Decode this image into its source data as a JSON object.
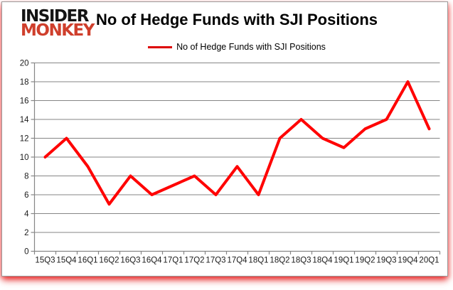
{
  "logo": {
    "line1": "INSIDER",
    "line2": "MONKEY"
  },
  "header": {
    "title": "No of Hedge Funds with SJI Positions"
  },
  "legend": {
    "label": "No of Hedge Funds with SJI Positions"
  },
  "colors": {
    "line": "#ff0000",
    "legend_line": "#dd0000",
    "logo_black": "#141414",
    "logo_red": "#cf3f2c",
    "grid": "#868686",
    "axis_text": "#1a1a1a",
    "bottom_shadow_red": "#e10f0f"
  },
  "chart_data": {
    "type": "line",
    "title": "No of Hedge Funds with SJI Positions",
    "series_name": "No of Hedge Funds with SJI Positions",
    "categories": [
      "15Q3",
      "15Q4",
      "16Q1",
      "16Q2",
      "16Q3",
      "16Q4",
      "17Q1",
      "17Q2",
      "17Q3",
      "17Q4",
      "18Q1",
      "18Q2",
      "18Q3",
      "18Q4",
      "19Q1",
      "19Q2",
      "19Q3",
      "19Q4",
      "20Q1"
    ],
    "values": [
      10,
      12,
      9,
      5,
      8,
      6,
      7,
      8,
      6,
      9,
      6,
      12,
      14,
      12,
      11,
      13,
      14,
      18,
      13
    ],
    "ylim": [
      0,
      20
    ],
    "ytick_step": 2,
    "grid": "horizontal-only",
    "legend_position": "top-center",
    "line_color": "#ff0000",
    "line_width": 4
  }
}
